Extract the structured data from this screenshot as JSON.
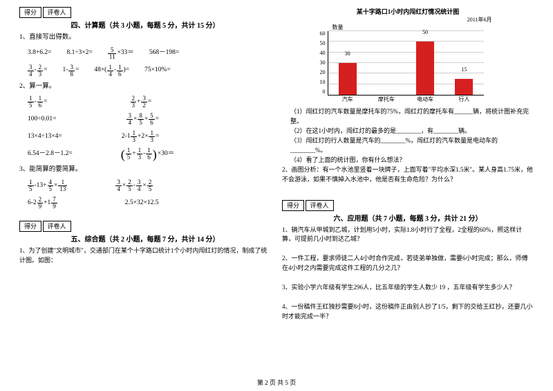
{
  "score_labels": {
    "score": "得分",
    "grader": "评卷人"
  },
  "sections": {
    "s4": "四、计算题（共 3 小题，每题 5 分，共计 15 分）",
    "s5": "五、综合题（共 2 小题，每题 7 分，共计 14 分）",
    "s6": "六、应用题（共 7 小题，每题 3 分，共计 21 分）"
  },
  "left": {
    "q1": "1、直接写出得数。",
    "r1": {
      "a": "3.8+6.2=",
      "b": "8.1÷3×2=",
      "c_pre": "",
      "c_f": [
        "5",
        "11"
      ],
      "c_post": "×33＝",
      "d": "568－198="
    },
    "r2": {
      "a_f1": [
        "3",
        "4"
      ],
      "a_mid": "-",
      "a_f2": [
        "2",
        "3"
      ],
      "a_eq": "=",
      "b_pre": "1-",
      "b_f": [
        "3",
        "8"
      ],
      "b_eq": "=",
      "c_pre": "48×(",
      "c_f1": [
        "1",
        "4"
      ],
      "c_mid": "-",
      "c_f2": [
        "1",
        "6"
      ],
      "c_post": ")=",
      "d": "75×10%="
    },
    "q2": "2、算一算。",
    "r3": {
      "a_f1": [
        "1",
        "5"
      ],
      "a_mid": "-",
      "a_f2": [
        "1",
        "6"
      ],
      "a_eq": "=",
      "b_f1": [
        "2",
        "3"
      ],
      "b_mid": "+",
      "b_f2": [
        "3",
        "2"
      ],
      "b_eq": "="
    },
    "r4": {
      "a": "100÷0.01=",
      "b_f1": [
        "3",
        "4"
      ],
      "b_m1": "×",
      "b_f2": [
        "8",
        "5"
      ],
      "b_m2": "×",
      "b_f3": [
        "5",
        "6"
      ],
      "b_eq": "="
    },
    "r5": {
      "a": "13×4÷13×4=",
      "b_pre": "2-1",
      "b_f1": [
        "1",
        "3"
      ],
      "b_m": "+2×",
      "b_f2": [
        "1",
        "3"
      ],
      "b_eq": "="
    },
    "r6": {
      "a": "6.54－2.8－1.2=",
      "b_f1": [
        "1",
        "5"
      ],
      "b_m1": "+",
      "b_f2": [
        "1",
        "3"
      ],
      "b_m2": "-",
      "b_f3": [
        "1",
        "6"
      ],
      "b_post": "×30＝"
    },
    "q3": "3、能简算的要简算。",
    "r7": {
      "a_f1": [
        "1",
        "5"
      ],
      "a_m1": "-13+",
      "a_f2": [
        "4",
        "5"
      ],
      "a_m2": "×",
      "a_f3": [
        "1",
        "13"
      ],
      "b_f1": [
        "3",
        "4"
      ],
      "b_m1": "×",
      "b_f2": [
        "2",
        "5"
      ],
      "b_m2": "-",
      "b_f3": [
        "3",
        "4"
      ],
      "b_m3": "×",
      "b_f4": [
        "2",
        "5"
      ]
    },
    "r8": {
      "a_pre": "6-2",
      "a_f1": [
        "2",
        "9"
      ],
      "a_m": "+1",
      "a_f2": [
        "7",
        "9"
      ],
      "b": "2.5×32×12.5"
    },
    "zh1": "1、为了创建\"文明城市\"，交通部门在某个十字路口统计1个小时内闯红灯的情况，制成了统计图。如图："
  },
  "chart": {
    "title": "某十字路口1小时内闯红灯情况统计图",
    "subtitle": "2011年6月",
    "ylabel": "数量",
    "ylim": [
      0,
      60
    ],
    "ytick_step": 10,
    "yticks": [
      "60",
      "50",
      "40",
      "30",
      "20",
      "10",
      "0"
    ],
    "categories": [
      "汽车",
      "摩托车",
      "电动车",
      "行人"
    ],
    "values": [
      30,
      null,
      50,
      15
    ],
    "show_labels": [
      true,
      false,
      true,
      true
    ],
    "bar_color": "#d6201f",
    "grid_color": "#cfcfcf",
    "background_color": "#ffffff"
  },
  "right": {
    "zh1_1": "（1）闯红灯的汽车数量是摩托车的75%，闯红灯的摩托车有______辆，将统计图补充完整。",
    "zh1_2": "（2）在这1小时内，闯红灯的最多的是________，有________辆。",
    "zh1_3": "（3）闯红灯的行人数量是汽车的________%，闯红灯的汽车数量是电动车的________%。",
    "zh1_4": "（4）看了上面的统计图，你有什么想法？",
    "zh2": "2、画图分析：有一个水池里竖着一块牌子，上面写着\"平均水深1.5米\"。某人身高1.75米，他不会游泳，如果不慎掉入水池中，他是否有生命危险？为什么？",
    "app1": "1、辆汽车从甲城到乙城，计划用5小时，实际1.8小时行了全程，2全程的60%，照这样计算，可提前几小时到达乙城？",
    "app2": "2、一件工程，要求师徒二人4小时合作完成，若徒弟单独做，需要6小时完成；那么，师傅在4小时之内需要完成这件工程的几分之几？",
    "app3": "3、实验小学六年级有学生296人，比五年级的学生人数少 19 ，五年级有学生多少人？",
    "app4": "4、一份稿件王红独抄需要8小时，这份稿件正由别人抄了1/5，剩下的交给王红抄，还要几小时才能完成一半？"
  },
  "footer": "第 2 页 共 5 页"
}
